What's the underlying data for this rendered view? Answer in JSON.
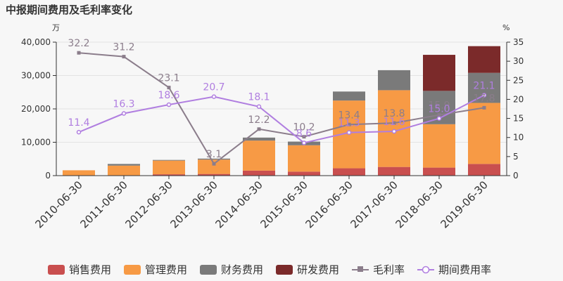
{
  "chart_data": {
    "type": "bar",
    "title": "中报期间费用及毛利率变化",
    "left_unit": "万",
    "right_unit": "%",
    "categories": [
      "2010-06-30",
      "2011-06-30",
      "2012-06-30",
      "2013-06-30",
      "2014-06-30",
      "2015-06-30",
      "2016-06-30",
      "2017-06-30",
      "2018-06-30",
      "2019-06-30"
    ],
    "left_axis": {
      "min": 0,
      "max": 40000,
      "ticks": [
        "0",
        "10,000",
        "20,000",
        "30,000",
        "40,000"
      ]
    },
    "right_axis": {
      "min": 0,
      "max": 35,
      "ticks": [
        "0",
        "5",
        "10",
        "15",
        "20",
        "25",
        "30",
        "35"
      ]
    },
    "stacked_series": [
      {
        "name": "销售费用",
        "color": "#c94f4f",
        "values": [
          100,
          100,
          400,
          500,
          1500,
          1200,
          2200,
          2600,
          2400,
          3500
        ]
      },
      {
        "name": "管理费用",
        "color": "#f79a45",
        "values": [
          1500,
          2900,
          4100,
          4300,
          9000,
          7900,
          20300,
          23000,
          13000,
          18300
        ]
      },
      {
        "name": "财务费用",
        "color": "#7a7a7a",
        "values": [
          0,
          500,
          200,
          300,
          900,
          1100,
          2700,
          6000,
          10000,
          9000
        ]
      },
      {
        "name": "研发费用",
        "color": "#7b2a2a",
        "values": [
          0,
          0,
          0,
          0,
          0,
          0,
          0,
          0,
          10800,
          8000
        ]
      }
    ],
    "line_series": [
      {
        "name": "毛利率",
        "color": "#8b7d8b",
        "marker": "square",
        "values": [
          32.2,
          31.2,
          23.1,
          3.1,
          12.2,
          10.2,
          13.4,
          13.8,
          15.9,
          17.8
        ],
        "labels": [
          "32.2",
          "31.2",
          "23.1",
          "3.1",
          "12.2",
          "10.2",
          "13.4",
          "13.8",
          "15.9",
          "17.8"
        ]
      },
      {
        "name": "期间费用率",
        "color": "#b07ee0",
        "marker": "circle",
        "values": [
          11.4,
          16.3,
          18.6,
          20.7,
          18.1,
          8.6,
          11.3,
          11.6,
          15.0,
          21.1
        ],
        "labels": [
          "11.4",
          "16.3",
          "18.6",
          "20.7",
          "18.1",
          "8.6",
          "11.3",
          "11.6",
          "15.0",
          "21.1"
        ]
      }
    ],
    "grid": true,
    "legend": "bottom"
  }
}
